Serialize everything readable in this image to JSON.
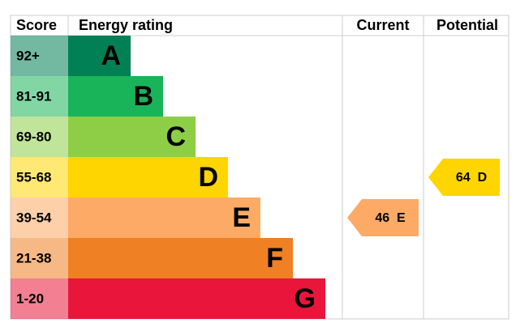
{
  "header": {
    "score": "Score",
    "rating": "Energy rating",
    "current": "Current",
    "potential": "Potential"
  },
  "bands": [
    {
      "score": "92+",
      "letter": "A",
      "color": "#008054"
    },
    {
      "score": "81-91",
      "letter": "B",
      "color": "#19b459"
    },
    {
      "score": "69-80",
      "letter": "C",
      "color": "#8dce46"
    },
    {
      "score": "55-68",
      "letter": "D",
      "color": "#ffd500"
    },
    {
      "score": "39-54",
      "letter": "E",
      "color": "#fcaa65"
    },
    {
      "score": "21-38",
      "letter": "F",
      "color": "#ef8023"
    },
    {
      "score": "1-20",
      "letter": "G",
      "color": "#e9153b"
    }
  ],
  "current": {
    "value": 46,
    "letter": "E"
  },
  "potential": {
    "value": 64,
    "letter": "D"
  }
}
